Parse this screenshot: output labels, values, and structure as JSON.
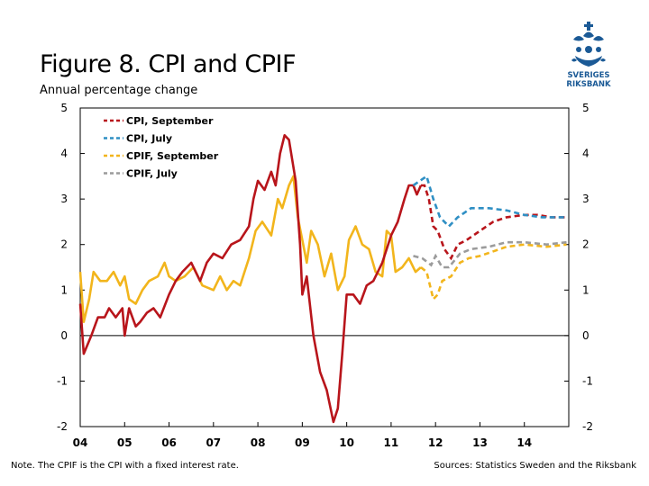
{
  "header": {
    "title": "Figure 8. CPI and CPIF",
    "subtitle": "Annual percentage change"
  },
  "logo": {
    "text_line1": "SVERIGES",
    "text_line2": "RIKSBANK",
    "icon": "riksbank-crest-icon"
  },
  "footer": {
    "note": "Note. The CPIF is the CPI with a fixed interest rate.",
    "sources": "Sources: Statistics Sweden and the Riksbank"
  },
  "colors": {
    "cpi_september": "#b8151b",
    "cpi_july": "#2f8fc4",
    "cpif_september": "#f2b51c",
    "cpif_july": "#9b9b9b",
    "logo": "#1b5a96"
  },
  "chart_data": {
    "type": "line",
    "title": "Figure 8. CPI and CPIF",
    "subtitle": "Annual percentage change",
    "xlabel": "",
    "ylabel": "",
    "ylim": [
      -2,
      5
    ],
    "yticks": [
      5,
      4,
      3,
      2,
      1,
      0,
      -1,
      -2
    ],
    "ytick_labels": [
      "5",
      "4",
      "3",
      "2",
      "1",
      "0",
      "-1",
      "-2"
    ],
    "xlim": [
      2004.0,
      2015.0
    ],
    "xtick_labels": [
      "04",
      "05",
      "06",
      "07",
      "08",
      "09",
      "10",
      "11",
      "12",
      "13",
      "14"
    ],
    "grid": false,
    "legend_position": "top-left",
    "series": [
      {
        "name": "CPI, September",
        "color": "#b8151b",
        "style": "solid-then-dashed",
        "forecast_from": 2011.67,
        "points": [
          [
            2004.0,
            0.7
          ],
          [
            2004.08,
            -0.4
          ],
          [
            2004.25,
            0.0
          ],
          [
            2004.4,
            0.4
          ],
          [
            2004.55,
            0.4
          ],
          [
            2004.65,
            0.6
          ],
          [
            2004.8,
            0.4
          ],
          [
            2004.95,
            0.6
          ],
          [
            2005.0,
            0.0
          ],
          [
            2005.1,
            0.6
          ],
          [
            2005.25,
            0.2
          ],
          [
            2005.35,
            0.3
          ],
          [
            2005.5,
            0.5
          ],
          [
            2005.65,
            0.6
          ],
          [
            2005.8,
            0.4
          ],
          [
            2006.0,
            0.9
          ],
          [
            2006.15,
            1.2
          ],
          [
            2006.3,
            1.4
          ],
          [
            2006.5,
            1.6
          ],
          [
            2006.7,
            1.2
          ],
          [
            2006.85,
            1.6
          ],
          [
            2007.0,
            1.8
          ],
          [
            2007.2,
            1.7
          ],
          [
            2007.4,
            2.0
          ],
          [
            2007.6,
            2.1
          ],
          [
            2007.8,
            2.4
          ],
          [
            2007.9,
            3.0
          ],
          [
            2008.0,
            3.4
          ],
          [
            2008.15,
            3.2
          ],
          [
            2008.3,
            3.6
          ],
          [
            2008.4,
            3.3
          ],
          [
            2008.5,
            4.0
          ],
          [
            2008.6,
            4.4
          ],
          [
            2008.7,
            4.3
          ],
          [
            2008.85,
            3.4
          ],
          [
            2008.95,
            2.0
          ],
          [
            2009.0,
            0.9
          ],
          [
            2009.1,
            1.3
          ],
          [
            2009.25,
            0.0
          ],
          [
            2009.4,
            -0.8
          ],
          [
            2009.55,
            -1.2
          ],
          [
            2009.7,
            -1.9
          ],
          [
            2009.8,
            -1.6
          ],
          [
            2009.9,
            -0.4
          ],
          [
            2010.0,
            0.9
          ],
          [
            2010.15,
            0.9
          ],
          [
            2010.3,
            0.7
          ],
          [
            2010.45,
            1.1
          ],
          [
            2010.6,
            1.2
          ],
          [
            2010.8,
            1.6
          ],
          [
            2011.0,
            2.2
          ],
          [
            2011.15,
            2.5
          ],
          [
            2011.3,
            3.0
          ],
          [
            2011.4,
            3.3
          ],
          [
            2011.5,
            3.3
          ],
          [
            2011.58,
            3.1
          ],
          [
            2011.67,
            3.3
          ],
          [
            2011.75,
            3.3
          ],
          [
            2011.85,
            3.0
          ],
          [
            2011.95,
            2.4
          ],
          [
            2012.05,
            2.3
          ],
          [
            2012.2,
            1.9
          ],
          [
            2012.35,
            1.7
          ],
          [
            2012.5,
            2.0
          ],
          [
            2012.7,
            2.1
          ],
          [
            2013.0,
            2.3
          ],
          [
            2013.3,
            2.5
          ],
          [
            2013.6,
            2.6
          ],
          [
            2014.0,
            2.65
          ],
          [
            2014.3,
            2.65
          ],
          [
            2014.6,
            2.6
          ],
          [
            2014.95,
            2.6
          ]
        ]
      },
      {
        "name": "CPI, July",
        "color": "#2f8fc4",
        "style": "dashed",
        "points": [
          [
            2011.5,
            3.3
          ],
          [
            2011.65,
            3.4
          ],
          [
            2011.8,
            3.5
          ],
          [
            2011.95,
            3.0
          ],
          [
            2012.1,
            2.6
          ],
          [
            2012.3,
            2.4
          ],
          [
            2012.5,
            2.6
          ],
          [
            2012.8,
            2.8
          ],
          [
            2013.2,
            2.8
          ],
          [
            2013.6,
            2.75
          ],
          [
            2014.0,
            2.65
          ],
          [
            2014.4,
            2.6
          ],
          [
            2014.95,
            2.6
          ]
        ]
      },
      {
        "name": "CPIF, September",
        "color": "#f2b51c",
        "style": "solid-then-dashed",
        "forecast_from": 2011.67,
        "points": [
          [
            2004.0,
            1.4
          ],
          [
            2004.08,
            0.3
          ],
          [
            2004.2,
            0.8
          ],
          [
            2004.3,
            1.4
          ],
          [
            2004.45,
            1.2
          ],
          [
            2004.6,
            1.2
          ],
          [
            2004.75,
            1.4
          ],
          [
            2004.9,
            1.1
          ],
          [
            2005.0,
            1.3
          ],
          [
            2005.1,
            0.8
          ],
          [
            2005.25,
            0.7
          ],
          [
            2005.4,
            1.0
          ],
          [
            2005.55,
            1.2
          ],
          [
            2005.75,
            1.3
          ],
          [
            2005.9,
            1.6
          ],
          [
            2006.0,
            1.3
          ],
          [
            2006.15,
            1.2
          ],
          [
            2006.35,
            1.3
          ],
          [
            2006.55,
            1.5
          ],
          [
            2006.75,
            1.1
          ],
          [
            2007.0,
            1.0
          ],
          [
            2007.15,
            1.3
          ],
          [
            2007.3,
            1.0
          ],
          [
            2007.45,
            1.2
          ],
          [
            2007.6,
            1.1
          ],
          [
            2007.8,
            1.7
          ],
          [
            2007.95,
            2.3
          ],
          [
            2008.1,
            2.5
          ],
          [
            2008.3,
            2.2
          ],
          [
            2008.45,
            3.0
          ],
          [
            2008.55,
            2.8
          ],
          [
            2008.7,
            3.3
          ],
          [
            2008.8,
            3.5
          ],
          [
            2008.9,
            2.6
          ],
          [
            2009.0,
            2.1
          ],
          [
            2009.1,
            1.6
          ],
          [
            2009.2,
            2.3
          ],
          [
            2009.35,
            2.0
          ],
          [
            2009.5,
            1.3
          ],
          [
            2009.65,
            1.8
          ],
          [
            2009.8,
            1.0
          ],
          [
            2009.95,
            1.3
          ],
          [
            2010.05,
            2.1
          ],
          [
            2010.2,
            2.4
          ],
          [
            2010.35,
            2.0
          ],
          [
            2010.5,
            1.9
          ],
          [
            2010.65,
            1.4
          ],
          [
            2010.8,
            1.3
          ],
          [
            2010.9,
            2.3
          ],
          [
            2011.0,
            2.2
          ],
          [
            2011.1,
            1.4
          ],
          [
            2011.25,
            1.5
          ],
          [
            2011.4,
            1.7
          ],
          [
            2011.55,
            1.4
          ],
          [
            2011.67,
            1.5
          ],
          [
            2011.8,
            1.4
          ],
          [
            2011.9,
            1.0
          ],
          [
            2011.95,
            0.8
          ],
          [
            2012.05,
            0.9
          ],
          [
            2012.15,
            1.2
          ],
          [
            2012.35,
            1.3
          ],
          [
            2012.55,
            1.6
          ],
          [
            2012.75,
            1.7
          ],
          [
            2013.0,
            1.75
          ],
          [
            2013.3,
            1.85
          ],
          [
            2013.6,
            1.95
          ],
          [
            2014.0,
            2.0
          ],
          [
            2014.5,
            1.95
          ],
          [
            2014.95,
            2.0
          ]
        ]
      },
      {
        "name": "CPIF, July",
        "color": "#9b9b9b",
        "style": "dashed",
        "points": [
          [
            2011.5,
            1.75
          ],
          [
            2011.7,
            1.7
          ],
          [
            2011.9,
            1.55
          ],
          [
            2012.0,
            1.75
          ],
          [
            2012.15,
            1.5
          ],
          [
            2012.3,
            1.5
          ],
          [
            2012.55,
            1.8
          ],
          [
            2012.8,
            1.9
          ],
          [
            2013.2,
            1.95
          ],
          [
            2013.6,
            2.05
          ],
          [
            2014.0,
            2.05
          ],
          [
            2014.5,
            2.0
          ],
          [
            2014.95,
            2.05
          ]
        ]
      }
    ]
  }
}
